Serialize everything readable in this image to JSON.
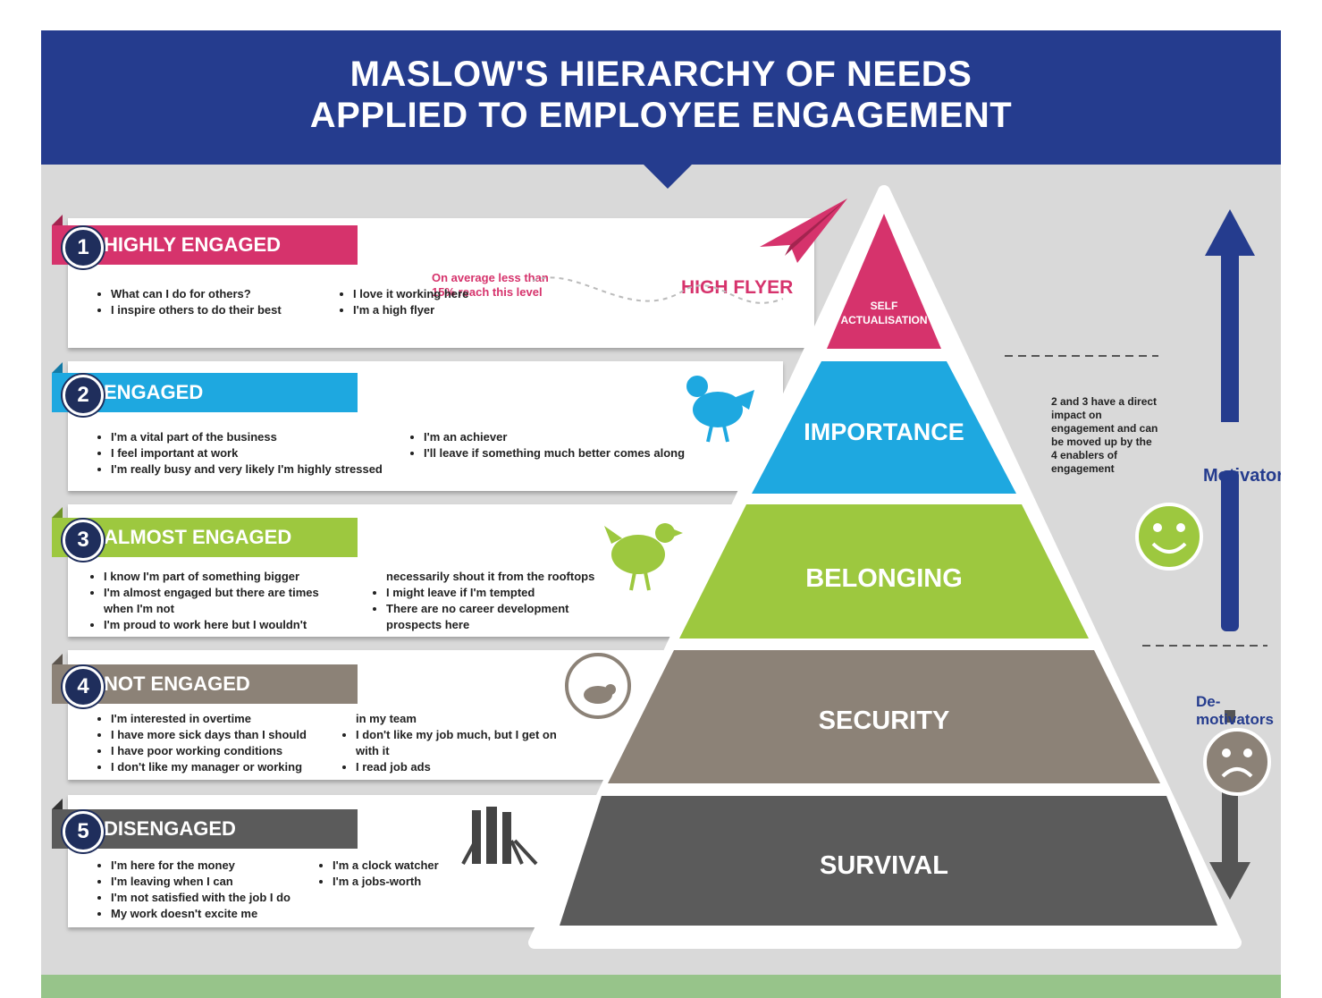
{
  "title": {
    "line1": "MASLOW'S HIERARCHY OF NEEDS",
    "line2": "APPLIED TO EMPLOYEE ENGAGEMENT"
  },
  "colors": {
    "header": "#253c8e",
    "pink": "#d6336c",
    "blue": "#1ea8e0",
    "green": "#9dc83f",
    "taupe": "#8c8277",
    "dark": "#5b5b5b",
    "footer": "#97c48a"
  },
  "levels": [
    {
      "number": "1",
      "label": "HIGHLY ENGAGED",
      "pyramid_label": "SELF ACTUALISATION",
      "bullets_left": [
        "What can I do for others?",
        "I inspire others to do their best"
      ],
      "bullets_right": [
        "I love it working here",
        "I'm a high flyer"
      ],
      "icon": "paper-plane-icon"
    },
    {
      "number": "2",
      "label": "ENGAGED",
      "pyramid_label": "IMPORTANCE",
      "bullets_left": [
        "I'm a vital part of the business",
        "I feel important at work",
        "I'm really busy and very likely I'm highly stressed"
      ],
      "bullets_right": [
        "I'm an achiever",
        "I'll leave if something much better comes along"
      ],
      "icon": "bird-icon"
    },
    {
      "number": "3",
      "label": "ALMOST ENGAGED",
      "pyramid_label": "BELONGING",
      "bullets_left": [
        "I know I'm part of something bigger",
        "I'm almost engaged but there are times",
        "when I'm not",
        "I'm proud to work here but I wouldn't"
      ],
      "bullets_right": [
        "necessarily shout it from the rooftops",
        "I might leave if I'm tempted",
        "There are no career development",
        "prospects here"
      ],
      "icon": "chicken-icon"
    },
    {
      "number": "4",
      "label": "NOT ENGAGED",
      "pyramid_label": "SECURITY",
      "bullets_left": [
        "I'm interested in overtime",
        "I have more sick days than I should",
        "I have poor working conditions",
        "I don't like my manager or working"
      ],
      "bullets_right": [
        "in my team",
        "I don't like my job much, but I get on",
        "with it",
        "I read job ads"
      ],
      "icon": "hamster-wheel-icon"
    },
    {
      "number": "5",
      "label": "DISENGAGED",
      "pyramid_label": "SURVIVAL",
      "bullets_left": [
        "I'm here for the money",
        "I'm leaving when I can",
        "I'm not satisfied with the job I do",
        "My work doesn't excite me"
      ],
      "bullets_right": [
        "I'm a clock watcher",
        "I'm a jobs-worth"
      ],
      "icon": "ostrich-icon"
    }
  ],
  "level1_note": {
    "avg_line1": "On average less than",
    "avg_line2": "15% reach this level",
    "high_flyer": "HIGH FLYER"
  },
  "side": {
    "note": "2 and 3 have a direct impact on engagement and can be moved up by the 4 enablers of engagement",
    "motivators": "Motivators",
    "demotivators": "De-motivators",
    "happy_icon": "smiley-face-icon",
    "sad_icon": "sad-face-icon"
  }
}
